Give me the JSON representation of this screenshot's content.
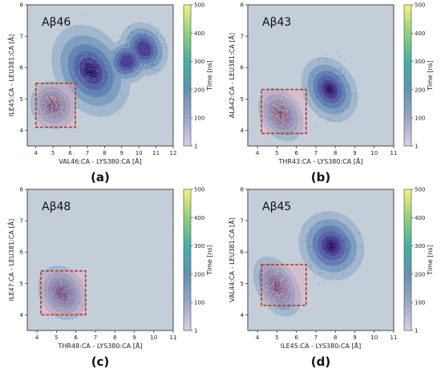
{
  "chart_data": [
    {
      "type": "scatter",
      "panel_letter": "(a)",
      "title": "Aβ46",
      "xlabel": "VAL46:CA - LYS380:CA  [Å]",
      "ylabel": "ILE45:CA - LEU381:CA  [Å]",
      "xlim": [
        3.5,
        12
      ],
      "ylim": [
        3.5,
        8
      ],
      "xticks": [
        "4",
        "5",
        "6",
        "7",
        "8",
        "9",
        "10",
        "11",
        "12"
      ],
      "yticks": [
        "4",
        "5",
        "6",
        "7",
        "8"
      ],
      "colorbar": {
        "label": "Time [ns]",
        "ticks": [
          "500",
          "400",
          "300",
          "200",
          "100",
          "1"
        ],
        "range": [
          1,
          500
        ]
      },
      "highlight_box": {
        "x": [
          4.0,
          6.3
        ],
        "y": [
          4.1,
          5.5
        ]
      },
      "clusters": [
        {
          "cx": 5.0,
          "cy": 4.8,
          "sx": 0.5,
          "sy": 0.3,
          "weight": 1.0,
          "time": "early"
        },
        {
          "cx": 7.2,
          "cy": 5.9,
          "sx": 0.8,
          "sy": 0.6,
          "weight": 1.0,
          "time": "mid"
        },
        {
          "cx": 9.3,
          "cy": 6.2,
          "sx": 0.6,
          "sy": 0.3,
          "weight": 0.7,
          "time": "late"
        },
        {
          "cx": 10.3,
          "cy": 6.6,
          "sx": 0.6,
          "sy": 0.4,
          "weight": 0.5,
          "time": "late"
        }
      ]
    },
    {
      "type": "scatter",
      "panel_letter": "(b)",
      "title": "Aβ43",
      "xlabel": "THR43:CA - LYS380:CA  [Å]",
      "ylabel": "ALA42:CA - LEU381:CA  [Å]",
      "xlim": [
        3.5,
        11
      ],
      "ylim": [
        3.5,
        8
      ],
      "xticks": [
        "4",
        "5",
        "6",
        "7",
        "8",
        "9",
        "10",
        "11"
      ],
      "yticks": [
        "4",
        "5",
        "6",
        "7",
        "8"
      ],
      "colorbar": {
        "label": "Time [ns]",
        "ticks": [
          "500",
          "400",
          "300",
          "200",
          "100",
          "1"
        ],
        "range": [
          1,
          500
        ]
      },
      "highlight_box": {
        "x": [
          4.2,
          6.5
        ],
        "y": [
          3.9,
          5.3
        ]
      },
      "clusters": [
        {
          "cx": 5.2,
          "cy": 4.5,
          "sx": 0.4,
          "sy": 0.35,
          "weight": 1.0,
          "time": "early"
        },
        {
          "cx": 7.7,
          "cy": 5.3,
          "sx": 0.55,
          "sy": 0.45,
          "weight": 0.8,
          "time": "late"
        }
      ]
    },
    {
      "type": "scatter",
      "panel_letter": "(c)",
      "title": "Aβ48",
      "xlabel": "THR48:CA - LYS380:CA  [Å]",
      "ylabel": "ILE47:CA - LEU381:CA  [Å]",
      "xlim": [
        3.5,
        11
      ],
      "ylim": [
        3.5,
        8
      ],
      "xticks": [
        "4",
        "5",
        "6",
        "7",
        "8",
        "9",
        "10",
        "11"
      ],
      "yticks": [
        "4",
        "5",
        "6",
        "7",
        "8"
      ],
      "colorbar": {
        "label": "Time [ns]",
        "ticks": [
          "500",
          "400",
          "300",
          "200",
          "100",
          "1"
        ],
        "range": [
          1,
          500
        ]
      },
      "highlight_box": {
        "x": [
          4.2,
          6.5
        ],
        "y": [
          4.0,
          5.4
        ]
      },
      "clusters": [
        {
          "cx": 5.3,
          "cy": 4.7,
          "sx": 0.45,
          "sy": 0.35,
          "weight": 1.0,
          "time": "all"
        }
      ]
    },
    {
      "type": "scatter",
      "panel_letter": "(d)",
      "title": "Aβ45",
      "xlabel": "ILE45:CA - LYS380:CA  [Å]",
      "ylabel": "VAL44:CA - LEU381:CA  [Å]",
      "xlim": [
        3.5,
        11
      ],
      "ylim": [
        3.5,
        8
      ],
      "xticks": [
        "4",
        "5",
        "6",
        "7",
        "8",
        "9",
        "10",
        "11"
      ],
      "yticks": [
        "4",
        "5",
        "6",
        "7",
        "8"
      ],
      "colorbar": {
        "label": "Time [ns]",
        "ticks": [
          "500",
          "400",
          "300",
          "200",
          "100",
          "1"
        ],
        "range": [
          1,
          500
        ]
      },
      "highlight_box": {
        "x": [
          4.2,
          6.5
        ],
        "y": [
          4.3,
          5.6
        ]
      },
      "clusters": [
        {
          "cx": 5.0,
          "cy": 4.9,
          "sx": 0.4,
          "sy": 0.4,
          "weight": 1.0,
          "time": "early"
        },
        {
          "cx": 7.8,
          "cy": 6.2,
          "sx": 0.65,
          "sy": 0.45,
          "weight": 0.9,
          "time": "late"
        }
      ]
    }
  ]
}
